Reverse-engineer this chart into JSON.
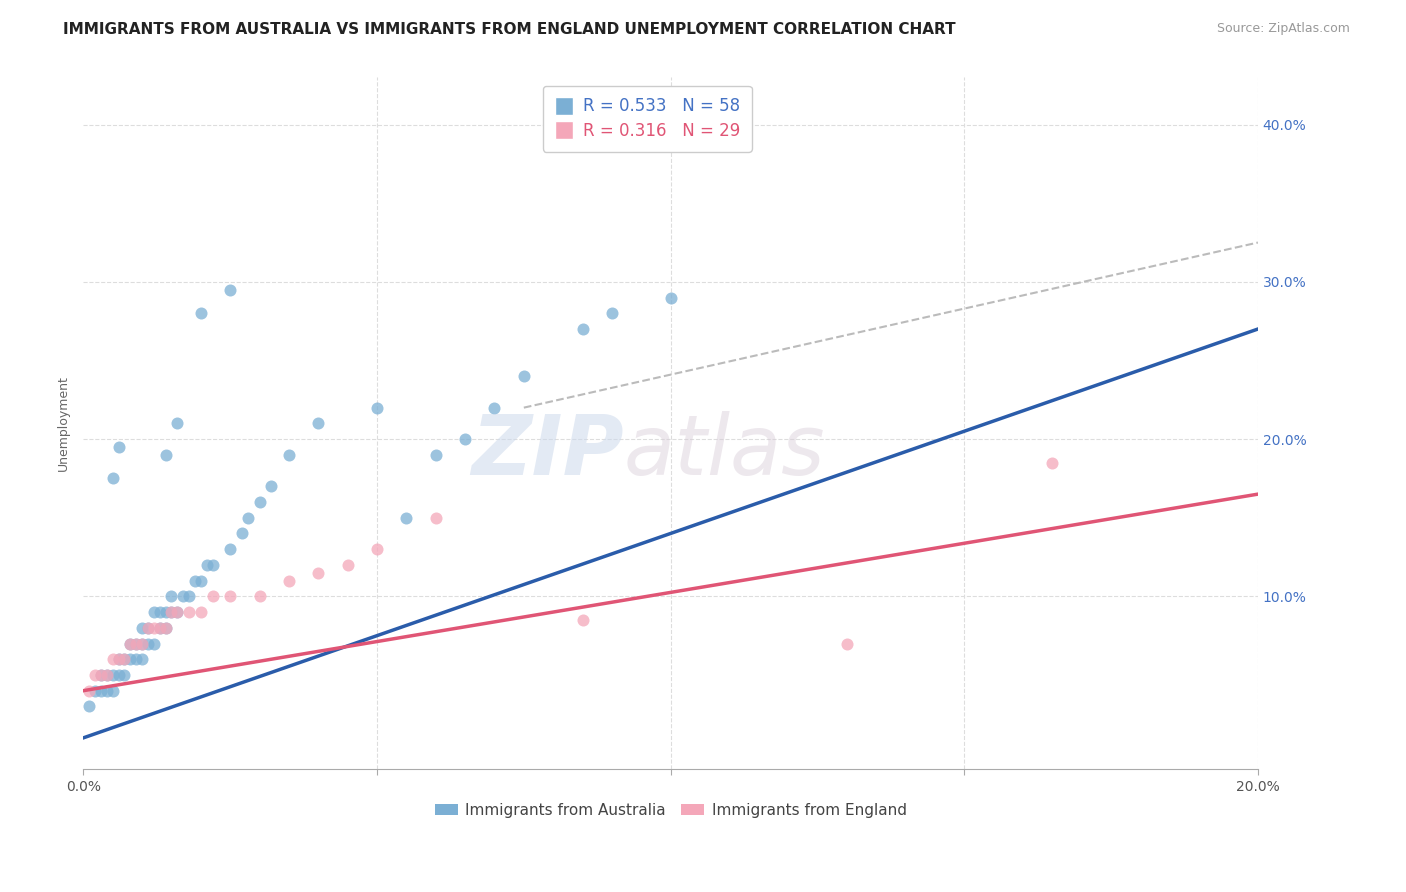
{
  "title": "IMMIGRANTS FROM AUSTRALIA VS IMMIGRANTS FROM ENGLAND UNEMPLOYMENT CORRELATION CHART",
  "source": "Source: ZipAtlas.com",
  "ylabel": "Unemployment",
  "xlim": [
    0.0,
    0.2
  ],
  "ylim": [
    -0.01,
    0.43
  ],
  "color_australia": "#7bafd4",
  "color_england": "#f4a7b9",
  "color_line_australia": "#2a5caa",
  "color_line_england": "#e05575",
  "color_dashed": "#bbbbbb",
  "australia_scatter_x": [
    0.001,
    0.002,
    0.003,
    0.003,
    0.004,
    0.004,
    0.005,
    0.005,
    0.006,
    0.006,
    0.007,
    0.007,
    0.008,
    0.008,
    0.009,
    0.009,
    0.01,
    0.01,
    0.01,
    0.011,
    0.011,
    0.012,
    0.012,
    0.013,
    0.013,
    0.014,
    0.014,
    0.015,
    0.015,
    0.016,
    0.017,
    0.018,
    0.019,
    0.02,
    0.021,
    0.022,
    0.025,
    0.027,
    0.028,
    0.03,
    0.032,
    0.035,
    0.04,
    0.05,
    0.055,
    0.06,
    0.065,
    0.07,
    0.075,
    0.085,
    0.09,
    0.1,
    0.005,
    0.006,
    0.014,
    0.016,
    0.02,
    0.025
  ],
  "australia_scatter_y": [
    0.03,
    0.04,
    0.04,
    0.05,
    0.04,
    0.05,
    0.04,
    0.05,
    0.05,
    0.06,
    0.05,
    0.06,
    0.06,
    0.07,
    0.06,
    0.07,
    0.06,
    0.07,
    0.08,
    0.07,
    0.08,
    0.07,
    0.09,
    0.08,
    0.09,
    0.08,
    0.09,
    0.09,
    0.1,
    0.09,
    0.1,
    0.1,
    0.11,
    0.11,
    0.12,
    0.12,
    0.13,
    0.14,
    0.15,
    0.16,
    0.17,
    0.19,
    0.21,
    0.22,
    0.15,
    0.19,
    0.2,
    0.22,
    0.24,
    0.27,
    0.28,
    0.29,
    0.175,
    0.195,
    0.19,
    0.21,
    0.28,
    0.295
  ],
  "england_scatter_x": [
    0.001,
    0.002,
    0.003,
    0.004,
    0.005,
    0.006,
    0.007,
    0.008,
    0.009,
    0.01,
    0.011,
    0.012,
    0.013,
    0.014,
    0.015,
    0.016,
    0.018,
    0.02,
    0.022,
    0.025,
    0.03,
    0.035,
    0.04,
    0.045,
    0.05,
    0.06,
    0.085,
    0.13,
    0.165
  ],
  "england_scatter_y": [
    0.04,
    0.05,
    0.05,
    0.05,
    0.06,
    0.06,
    0.06,
    0.07,
    0.07,
    0.07,
    0.08,
    0.08,
    0.08,
    0.08,
    0.09,
    0.09,
    0.09,
    0.09,
    0.1,
    0.1,
    0.1,
    0.11,
    0.115,
    0.12,
    0.13,
    0.15,
    0.085,
    0.07,
    0.185
  ],
  "aus_line_x0": 0.0,
  "aus_line_y0": 0.01,
  "aus_line_x1": 0.2,
  "aus_line_y1": 0.27,
  "eng_line_x0": 0.0,
  "eng_line_y0": 0.04,
  "eng_line_x1": 0.2,
  "eng_line_y1": 0.165,
  "dash_line_x0": 0.075,
  "dash_line_y0": 0.22,
  "dash_line_x1": 0.2,
  "dash_line_y1": 0.325,
  "title_fontsize": 11,
  "tick_fontsize": 10,
  "ylabel_fontsize": 9,
  "right_tick_color": "#4472c4",
  "grid_color": "#dddddd"
}
